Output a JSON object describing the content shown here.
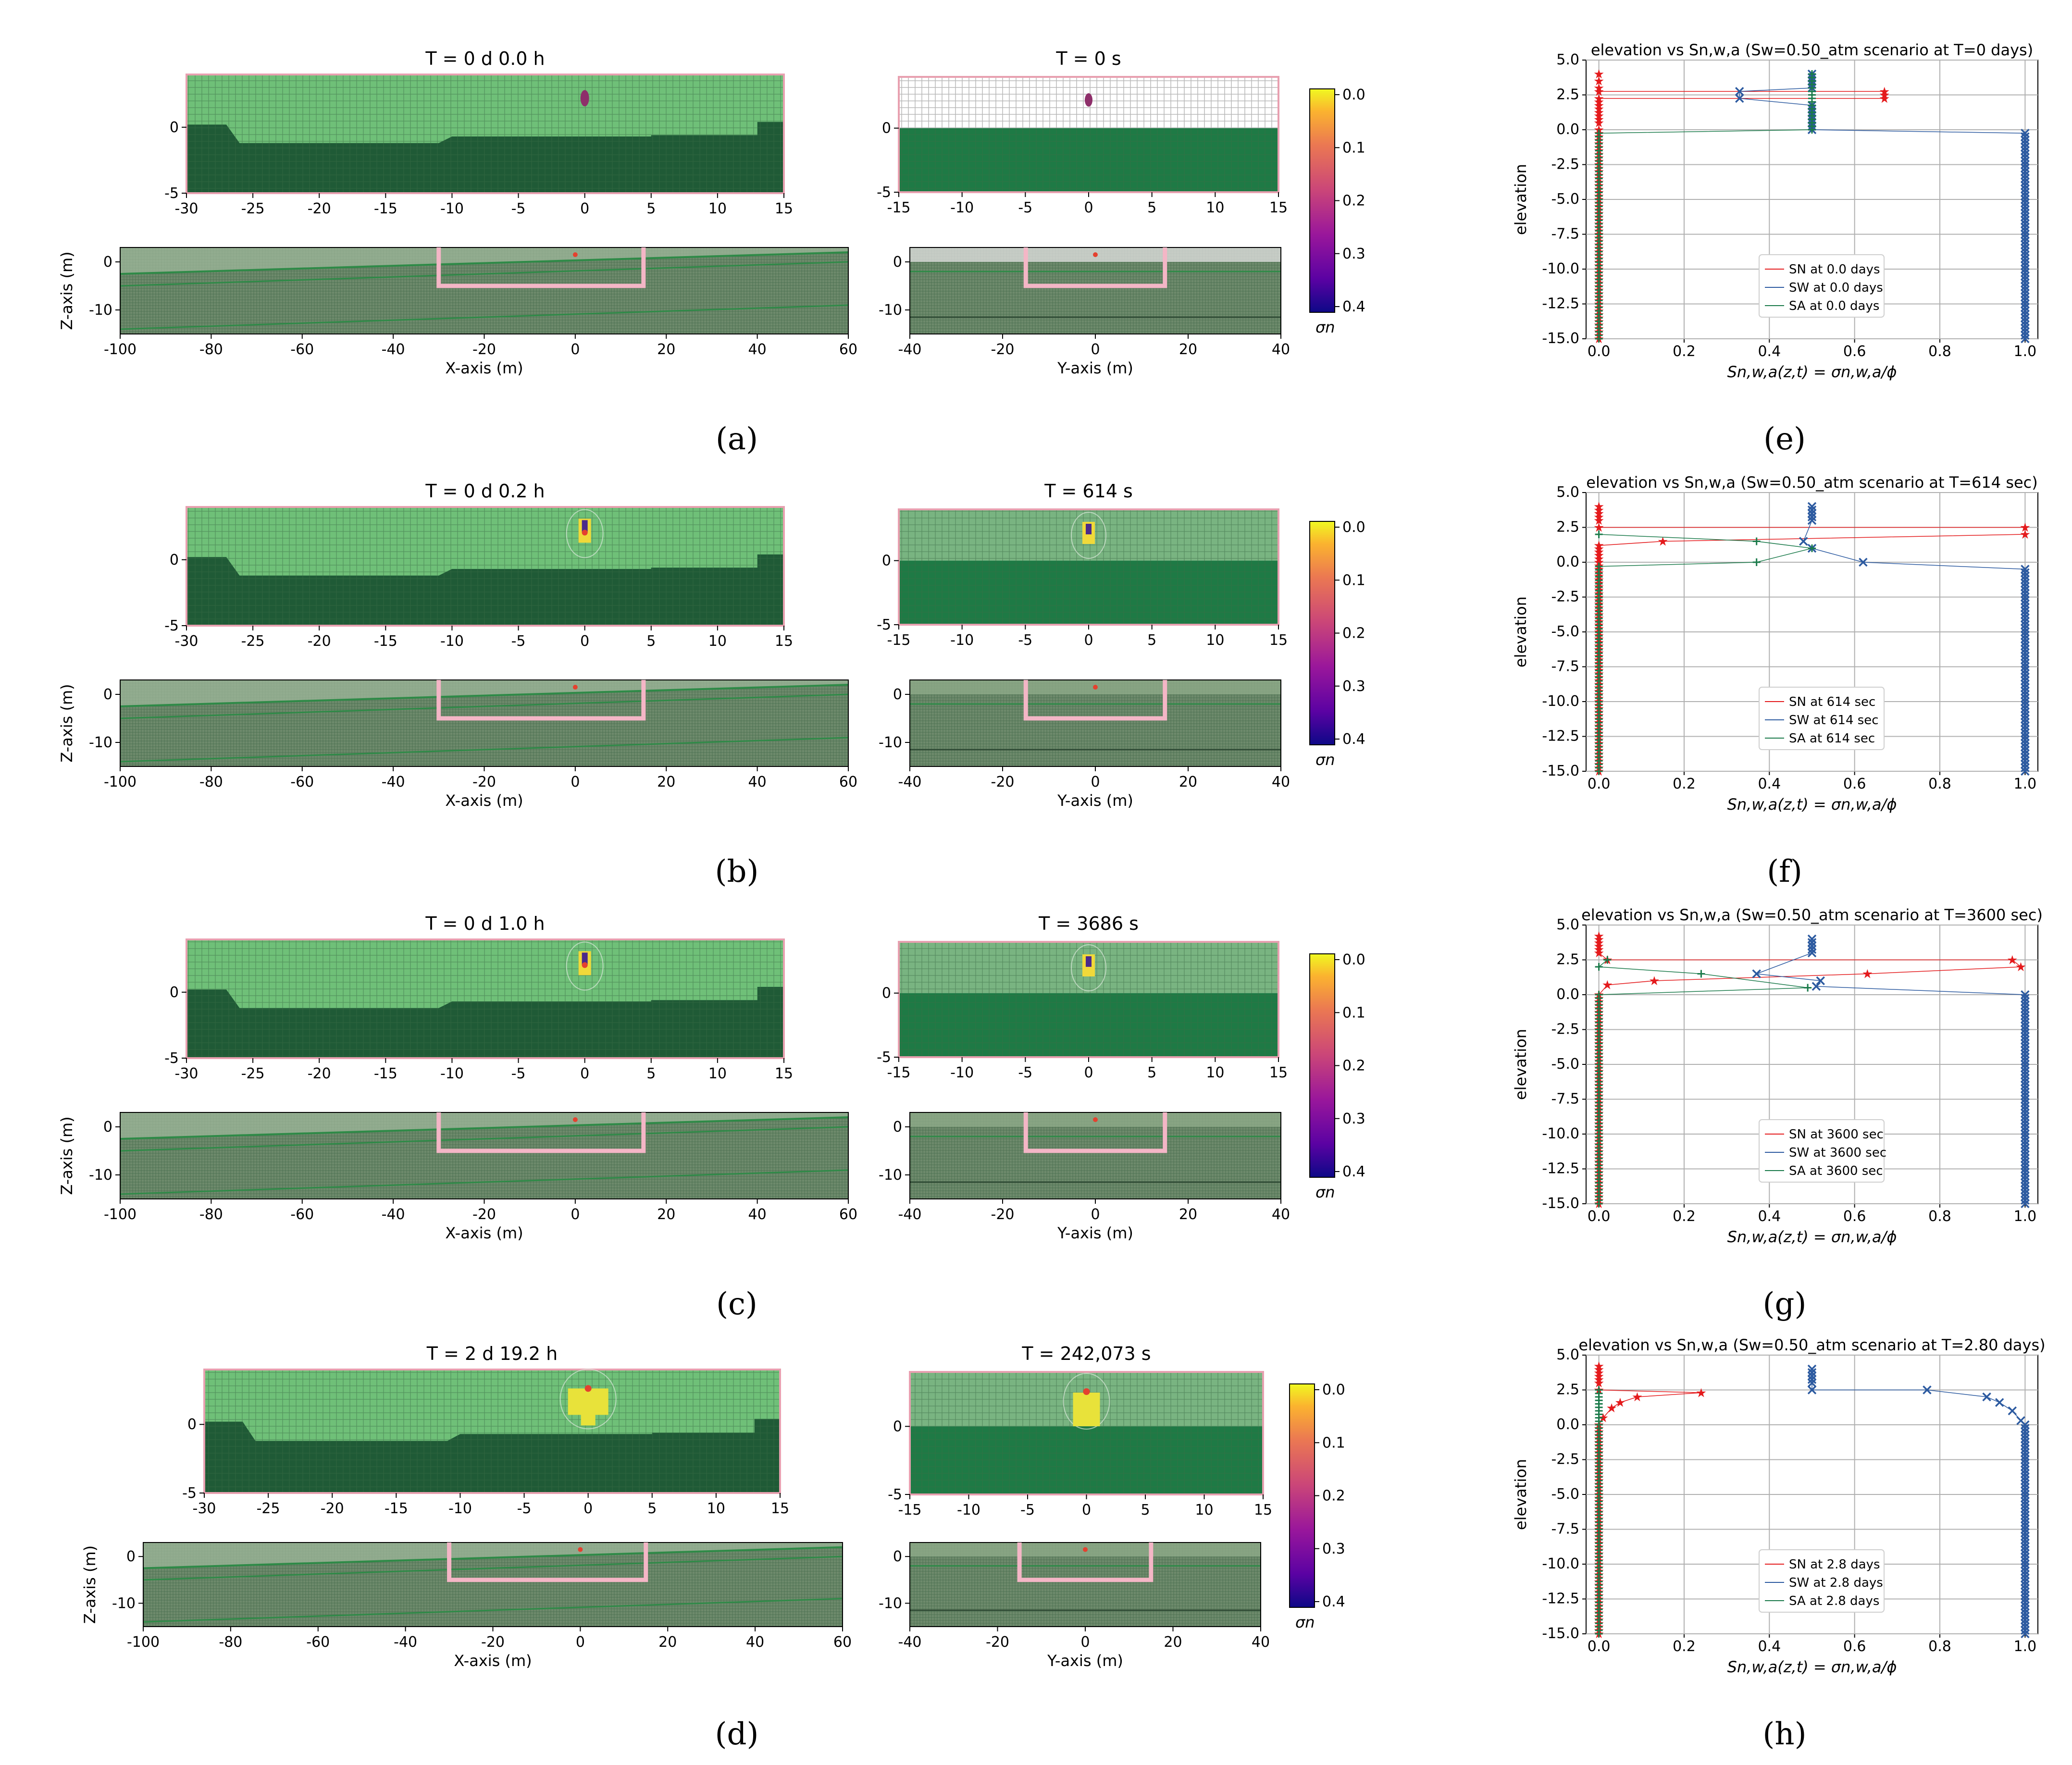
{
  "panel_labels": [
    "(a)",
    "(b)",
    "(c)",
    "(d)",
    "(e)",
    "(f)",
    "(g)",
    "(h)"
  ],
  "chart_data": [
    {
      "type": "heatmap",
      "panel": "(a)",
      "views": {
        "x_zoom": {
          "title": "T = 0 d  0.0 h",
          "xlim": [
            -30,
            15
          ],
          "xticks": [
            -30,
            -25,
            -20,
            -15,
            -10,
            -5,
            0,
            5,
            10,
            15
          ],
          "ylim": [
            -5,
            4
          ],
          "yticks": [
            0,
            -5
          ]
        },
        "y_zoom": {
          "title": "T = 0 s",
          "xlim": [
            -15,
            15
          ],
          "xticks": [
            -15,
            -10,
            -5,
            0,
            5,
            10,
            15
          ],
          "ylim": [
            -5,
            4
          ],
          "yticks": [
            0,
            -5
          ]
        },
        "x_full": {
          "xlabel": "X-axis (m)",
          "ylabel": "Z-axis (m)",
          "xlim": [
            -100,
            60
          ],
          "xticks": [
            -100,
            -80,
            -60,
            -40,
            -20,
            0,
            20,
            40,
            60
          ],
          "ylim": [
            -15,
            3
          ],
          "yticks": [
            0,
            -10
          ]
        },
        "y_full": {
          "xlabel": "Y-axis (m)",
          "xlim": [
            -40,
            40
          ],
          "xticks": [
            -40,
            -20,
            0,
            20,
            40
          ],
          "ylim": [
            -15,
            3
          ],
          "yticks": [
            0,
            -10
          ]
        }
      },
      "colorbar": {
        "label": "σn",
        "ticks": [
          "0.0",
          "0.1",
          "0.2",
          "0.3",
          "0.4"
        ],
        "range": [
          0.0,
          0.4
        ]
      }
    },
    {
      "type": "heatmap",
      "panel": "(b)",
      "views": {
        "x_zoom": {
          "title": "T = 0 d  0.2 h",
          "xlim": [
            -30,
            15
          ],
          "xticks": [
            -30,
            -25,
            -20,
            -15,
            -10,
            -5,
            0,
            5,
            10,
            15
          ],
          "ylim": [
            -5,
            4
          ],
          "yticks": [
            0,
            -5
          ]
        },
        "y_zoom": {
          "title": "T = 614 s",
          "xlim": [
            -15,
            15
          ],
          "xticks": [
            -15,
            -10,
            -5,
            0,
            5,
            10,
            15
          ],
          "ylim": [
            -5,
            4
          ],
          "yticks": [
            0,
            -5
          ]
        },
        "x_full": {
          "xlabel": "X-axis (m)",
          "ylabel": "Z-axis (m)",
          "xlim": [
            -100,
            60
          ],
          "xticks": [
            -100,
            -80,
            -60,
            -40,
            -20,
            0,
            20,
            40,
            60
          ],
          "ylim": [
            -15,
            3
          ],
          "yticks": [
            0,
            -10
          ]
        },
        "y_full": {
          "xlabel": "Y-axis (m)",
          "xlim": [
            -40,
            40
          ],
          "xticks": [
            -40,
            -20,
            0,
            20,
            40
          ],
          "ylim": [
            -15,
            3
          ],
          "yticks": [
            0,
            -10
          ]
        }
      },
      "colorbar": {
        "label": "σn",
        "ticks": [
          "0.0",
          "0.1",
          "0.2",
          "0.3",
          "0.4"
        ],
        "range": [
          0.0,
          0.4
        ]
      }
    },
    {
      "type": "heatmap",
      "panel": "(c)",
      "views": {
        "x_zoom": {
          "title": "T = 0 d  1.0 h",
          "xlim": [
            -30,
            15
          ],
          "xticks": [
            -30,
            -25,
            -20,
            -15,
            -10,
            -5,
            0,
            5,
            10,
            15
          ],
          "ylim": [
            -5,
            4
          ],
          "yticks": [
            0,
            -5
          ]
        },
        "y_zoom": {
          "title": "T = 3686 s",
          "xlim": [
            -15,
            15
          ],
          "xticks": [
            -15,
            -10,
            -5,
            0,
            5,
            10,
            15
          ],
          "ylim": [
            -5,
            4
          ],
          "yticks": [
            0,
            -5
          ]
        },
        "x_full": {
          "xlabel": "X-axis (m)",
          "ylabel": "Z-axis (m)",
          "xlim": [
            -100,
            60
          ],
          "xticks": [
            -100,
            -80,
            -60,
            -40,
            -20,
            0,
            20,
            40,
            60
          ],
          "ylim": [
            -15,
            3
          ],
          "yticks": [
            0,
            -10
          ]
        },
        "y_full": {
          "xlabel": "Y-axis (m)",
          "xlim": [
            -40,
            40
          ],
          "xticks": [
            -40,
            -20,
            0,
            20,
            40
          ],
          "ylim": [
            -15,
            3
          ],
          "yticks": [
            0,
            -10
          ]
        }
      },
      "colorbar": {
        "label": "σn",
        "ticks": [
          "0.0",
          "0.1",
          "0.2",
          "0.3",
          "0.4"
        ],
        "range": [
          0.0,
          0.4
        ]
      }
    },
    {
      "type": "heatmap",
      "panel": "(d)",
      "views": {
        "x_zoom": {
          "title": "T = 2 d 19.2 h",
          "xlim": [
            -30,
            15
          ],
          "xticks": [
            -30,
            -25,
            -20,
            -15,
            -10,
            -5,
            0,
            5,
            10,
            15
          ],
          "ylim": [
            -5,
            4
          ],
          "yticks": [
            0,
            -5
          ]
        },
        "y_zoom": {
          "title": "T = 242,073 s",
          "xlim": [
            -15,
            15
          ],
          "xticks": [
            -15,
            -10,
            -5,
            0,
            5,
            10,
            15
          ],
          "ylim": [
            -5,
            4
          ],
          "yticks": [
            0,
            -5
          ]
        },
        "x_full": {
          "xlabel": "X-axis (m)",
          "ylabel": "Z-axis (m)",
          "xlim": [
            -100,
            60
          ],
          "xticks": [
            -100,
            -80,
            -60,
            -40,
            -20,
            0,
            20,
            40,
            60
          ],
          "ylim": [
            -15,
            3
          ],
          "yticks": [
            0,
            -10
          ]
        },
        "y_full": {
          "xlabel": "Y-axis (m)",
          "xlim": [
            -40,
            40
          ],
          "xticks": [
            -40,
            -20,
            0,
            20,
            40
          ],
          "ylim": [
            -15,
            3
          ],
          "yticks": [
            0,
            -10
          ]
        }
      },
      "colorbar": {
        "label": "σn",
        "ticks": [
          "0.0",
          "0.1",
          "0.2",
          "0.3",
          "0.4"
        ],
        "range": [
          0.0,
          0.4
        ]
      }
    },
    {
      "type": "line",
      "panel": "(e)",
      "title": "elevation vs Sn,w,a (Sw=0.50_atm scenario at T=0 days)",
      "xlabel": "Sn,w,a(z,t) = σn,w,a/ϕ",
      "ylabel": "elevation",
      "xlim": [
        -0.03,
        1.03
      ],
      "ylim": [
        -15,
        5
      ],
      "xticks": [
        "0.0",
        "0.2",
        "0.4",
        "0.6",
        "0.8",
        "1.0"
      ],
      "yticks": [
        "5.0",
        "2.5",
        "0.0",
        "-2.5",
        "-5.0",
        "-7.5",
        "-10.0",
        "-12.5",
        "-15.0"
      ],
      "legend_position": "lower-center",
      "grid": true,
      "series": [
        {
          "name": "SN at 0.0 days",
          "color": "#e41a1c",
          "marker": "star",
          "points": [
            [
              0,
              4
            ],
            [
              0,
              3.5
            ],
            [
              0,
              3
            ],
            [
              0,
              2.75
            ],
            [
              0.67,
              2.75
            ],
            [
              0.67,
              2.5
            ],
            [
              0.67,
              2.25
            ],
            [
              0,
              2.25
            ],
            [
              0,
              1.5
            ],
            [
              0,
              0.5
            ],
            [
              0,
              0
            ],
            [
              0,
              -15
            ]
          ]
        },
        {
          "name": "SW at 0.0 days",
          "color": "#2c5aa0",
          "marker": "x",
          "points": [
            [
              0.5,
              4
            ],
            [
              0.5,
              3
            ],
            [
              0.33,
              2.75
            ],
            [
              0.33,
              2.25
            ],
            [
              0.5,
              1.75
            ],
            [
              0.5,
              0
            ],
            [
              1.0,
              -0.25
            ],
            [
              1.0,
              -15
            ]
          ]
        },
        {
          "name": "SA at 0.0 days",
          "color": "#1a7a4a",
          "marker": "plus",
          "points": [
            [
              0.5,
              4
            ],
            [
              0.5,
              3
            ],
            [
              0.5,
              1.5
            ],
            [
              0.5,
              0
            ],
            [
              0,
              -0.25
            ],
            [
              0,
              -15
            ]
          ]
        }
      ]
    },
    {
      "type": "line",
      "panel": "(f)",
      "title": "elevation vs Sn,w,a (Sw=0.50_atm scenario at T=614 sec)",
      "xlabel": "Sn,w,a(z,t) = σn,w,a/ϕ",
      "ylabel": "elevation",
      "xlim": [
        -0.03,
        1.03
      ],
      "ylim": [
        -15,
        5
      ],
      "xticks": [
        "0.0",
        "0.2",
        "0.4",
        "0.6",
        "0.8",
        "1.0"
      ],
      "yticks": [
        "5.0",
        "2.5",
        "0.0",
        "-2.5",
        "-5.0",
        "-7.5",
        "-10.0",
        "-12.5",
        "-15.0"
      ],
      "legend_position": "lower-center",
      "grid": true,
      "series": [
        {
          "name": "SN at 614 sec",
          "color": "#e41a1c",
          "marker": "star",
          "points": [
            [
              0,
              4
            ],
            [
              0,
              3
            ],
            [
              0,
              2.5
            ],
            [
              1.0,
              2.5
            ],
            [
              1.0,
              2
            ],
            [
              0.15,
              1.5
            ],
            [
              0,
              1.2
            ],
            [
              0,
              0.5
            ],
            [
              0,
              -15
            ]
          ]
        },
        {
          "name": "SW at 614 sec",
          "color": "#2c5aa0",
          "marker": "x",
          "points": [
            [
              0.5,
              4
            ],
            [
              0.5,
              3
            ],
            [
              0.48,
              1.5
            ],
            [
              0.5,
              1
            ],
            [
              0.62,
              0
            ],
            [
              1.0,
              -0.5
            ],
            [
              1.0,
              -15
            ]
          ]
        },
        {
          "name": "SA at 614 sec",
          "color": "#1a7a4a",
          "marker": "plus",
          "points": [
            [
              0,
              2
            ],
            [
              0.37,
              1.5
            ],
            [
              0.5,
              1
            ],
            [
              0.37,
              0
            ],
            [
              0,
              -0.3
            ],
            [
              0,
              -15
            ]
          ]
        }
      ]
    },
    {
      "type": "line",
      "panel": "(g)",
      "title": "elevation vs Sn,w,a (Sw=0.50_atm scenario at T=3600 sec)",
      "xlabel": "Sn,w,a(z,t) = σn,w,a/ϕ",
      "ylabel": "elevation",
      "xlim": [
        -0.03,
        1.03
      ],
      "ylim": [
        -15,
        5
      ],
      "xticks": [
        "0.0",
        "0.2",
        "0.4",
        "0.6",
        "0.8",
        "1.0"
      ],
      "yticks": [
        "5.0",
        "2.5",
        "0.0",
        "-2.5",
        "-5.0",
        "-7.5",
        "-10.0",
        "-12.5",
        "-15.0"
      ],
      "legend_position": "lower-center",
      "grid": true,
      "series": [
        {
          "name": "SN at 3600 sec",
          "color": "#e41a1c",
          "marker": "star",
          "points": [
            [
              0,
              4.2
            ],
            [
              0,
              3
            ],
            [
              0.02,
              2.5
            ],
            [
              0.97,
              2.5
            ],
            [
              0.99,
              2
            ],
            [
              0.63,
              1.5
            ],
            [
              0.13,
              1
            ],
            [
              0.02,
              0.7
            ],
            [
              0,
              0
            ],
            [
              0,
              -15
            ]
          ]
        },
        {
          "name": "SW at 3600 sec",
          "color": "#2c5aa0",
          "marker": "x",
          "points": [
            [
              0.5,
              4
            ],
            [
              0.5,
              3
            ],
            [
              0.37,
              1.5
            ],
            [
              0.52,
              1
            ],
            [
              0.51,
              0.6
            ],
            [
              1.0,
              0
            ],
            [
              1.0,
              -15
            ]
          ]
        },
        {
          "name": "SA at 3600 sec",
          "color": "#1a7a4a",
          "marker": "plus",
          "points": [
            [
              0.02,
              2.5
            ],
            [
              0,
              2
            ],
            [
              0.24,
              1.5
            ],
            [
              0.49,
              0.5
            ],
            [
              0,
              0
            ],
            [
              0,
              -15
            ]
          ]
        }
      ]
    },
    {
      "type": "line",
      "panel": "(h)",
      "title": "elevation vs Sn,w,a (Sw=0.50_atm scenario at T=2.80 days)",
      "xlabel": "Sn,w,a(z,t) = σn,w,a/ϕ",
      "ylabel": "elevation",
      "xlim": [
        -0.03,
        1.03
      ],
      "ylim": [
        -15,
        5
      ],
      "xticks": [
        "0.0",
        "0.2",
        "0.4",
        "0.6",
        "0.8",
        "1.0"
      ],
      "yticks": [
        "5.0",
        "2.5",
        "0.0",
        "-2.5",
        "-5.0",
        "-7.5",
        "-10.0",
        "-12.5",
        "-15.0"
      ],
      "legend_position": "lower-center",
      "grid": true,
      "series": [
        {
          "name": "SN at 2.8 days",
          "color": "#e41a1c",
          "marker": "star",
          "points": [
            [
              0,
              4.2
            ],
            [
              0,
              3
            ],
            [
              0,
              2.5
            ],
            [
              0.24,
              2.3
            ],
            [
              0.09,
              2
            ],
            [
              0.05,
              1.6
            ],
            [
              0.03,
              1.2
            ],
            [
              0.01,
              0.5
            ],
            [
              0,
              0
            ],
            [
              0,
              -15
            ]
          ]
        },
        {
          "name": "SW at 2.8 days",
          "color": "#2c5aa0",
          "marker": "x",
          "points": [
            [
              0.5,
              4
            ],
            [
              0.5,
              3
            ],
            [
              0.5,
              2.5
            ],
            [
              0.77,
              2.5
            ],
            [
              0.91,
              2
            ],
            [
              0.94,
              1.6
            ],
            [
              0.97,
              1
            ],
            [
              0.99,
              0.3
            ],
            [
              1.0,
              0
            ],
            [
              1.0,
              -15
            ]
          ]
        },
        {
          "name": "SA at 2.8 days",
          "color": "#1a7a4a",
          "marker": "plus",
          "points": [
            [
              0,
              2.5
            ],
            [
              0,
              1
            ],
            [
              0,
              0
            ],
            [
              0,
              -15
            ]
          ]
        }
      ]
    }
  ]
}
